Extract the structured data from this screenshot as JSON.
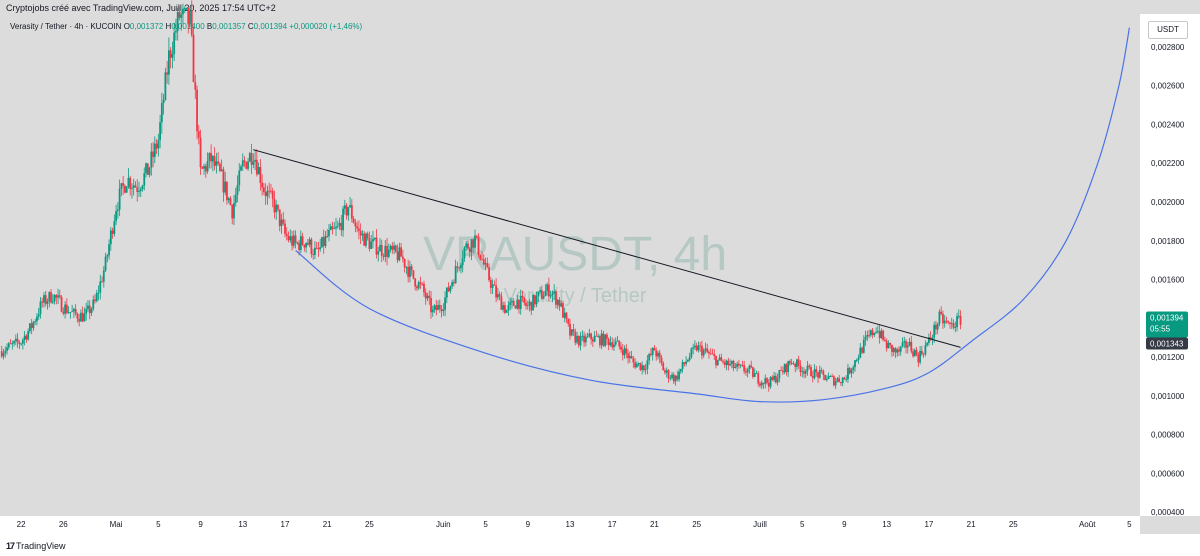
{
  "header": {
    "caption": "Cryptojobs créé avec TradingView.com, Juill 20, 2025 17:54 UTC+2"
  },
  "legend": {
    "symbol": "Verasity / Tether · 4h · KUCOIN",
    "o_label": "O",
    "o_value": "0,001372",
    "h_label": "H",
    "h_value": "0,001400",
    "l_label": "B",
    "l_value": "0,001357",
    "c_label": "C",
    "c_value": "0,001394",
    "change": "+0,000020 (+1,46%)"
  },
  "watermark": {
    "ticker": "VRAUSDT, 4h",
    "name": "Verasity / Tether"
  },
  "price_scale": {
    "currency": "USDT",
    "last_price": "0,001394",
    "countdown": "05:55",
    "other_price": "0,001343"
  },
  "footer": {
    "logo_mark": "17",
    "brand": "TradingView"
  },
  "colors": {
    "up": "#089981",
    "down": "#f23645",
    "trendline": "#131722",
    "curve": "#4a73e8",
    "background": "#dcdcdc"
  },
  "chart_data": {
    "type": "candlestick",
    "ylim": [
      0.00038,
      0.00297
    ],
    "yticks": [
      {
        "value": 0.0028,
        "label": "0,002800"
      },
      {
        "value": 0.0026,
        "label": "0,002600"
      },
      {
        "value": 0.0024,
        "label": "0,002400"
      },
      {
        "value": 0.0022,
        "label": "0,002200"
      },
      {
        "value": 0.002,
        "label": "0,002000"
      },
      {
        "value": 0.0018,
        "label": "0,001800"
      },
      {
        "value": 0.0016,
        "label": "0,001600"
      },
      {
        "value": 0.0012,
        "label": "0,001200"
      },
      {
        "value": 0.001,
        "label": "0,001000"
      },
      {
        "value": 0.0008,
        "label": "0,000800"
      },
      {
        "value": 0.0006,
        "label": "0,000600"
      },
      {
        "value": 0.0004,
        "label": "0,000400"
      }
    ],
    "xrange": [
      "2025-04-20",
      "2025-08-06"
    ],
    "xticks": [
      {
        "date": "2025-04-22",
        "label": "22"
      },
      {
        "date": "2025-04-26",
        "label": "26"
      },
      {
        "date": "2025-05-01",
        "label": "Mai"
      },
      {
        "date": "2025-05-05",
        "label": "5"
      },
      {
        "date": "2025-05-09",
        "label": "9"
      },
      {
        "date": "2025-05-13",
        "label": "13"
      },
      {
        "date": "2025-05-17",
        "label": "17"
      },
      {
        "date": "2025-05-21",
        "label": "21"
      },
      {
        "date": "2025-05-25",
        "label": "25"
      },
      {
        "date": "2025-06-01",
        "label": "Juin"
      },
      {
        "date": "2025-06-05",
        "label": "5"
      },
      {
        "date": "2025-06-09",
        "label": "9"
      },
      {
        "date": "2025-06-13",
        "label": "13"
      },
      {
        "date": "2025-06-17",
        "label": "17"
      },
      {
        "date": "2025-06-21",
        "label": "21"
      },
      {
        "date": "2025-06-25",
        "label": "25"
      },
      {
        "date": "2025-07-01",
        "label": "Juill"
      },
      {
        "date": "2025-07-05",
        "label": "5"
      },
      {
        "date": "2025-07-09",
        "label": "9"
      },
      {
        "date": "2025-07-13",
        "label": "13"
      },
      {
        "date": "2025-07-17",
        "label": "17"
      },
      {
        "date": "2025-07-21",
        "label": "21"
      },
      {
        "date": "2025-07-25",
        "label": "25"
      },
      {
        "date": "2025-08-01",
        "label": "Août"
      },
      {
        "date": "2025-08-05",
        "label": "5"
      }
    ],
    "price_path": [
      [
        "2025-04-20",
        0.00123
      ],
      [
        "2025-04-22",
        0.00128
      ],
      [
        "2025-04-23",
        0.00136
      ],
      [
        "2025-04-24",
        0.00148
      ],
      [
        "2025-04-25",
        0.00152
      ],
      [
        "2025-04-26",
        0.00146
      ],
      [
        "2025-04-27",
        0.00142
      ],
      [
        "2025-04-28",
        0.00141
      ],
      [
        "2025-04-29",
        0.00148
      ],
      [
        "2025-04-30",
        0.00168
      ],
      [
        "2025-05-01",
        0.00198
      ],
      [
        "2025-05-02",
        0.00212
      ],
      [
        "2025-05-03",
        0.00208
      ],
      [
        "2025-05-04",
        0.00216
      ],
      [
        "2025-05-05",
        0.00232
      ],
      [
        "2025-05-06",
        0.00275
      ],
      [
        "2025-05-07",
        0.00296
      ],
      [
        "2025-05-08",
        0.00293
      ],
      [
        "2025-05-09",
        0.00215
      ],
      [
        "2025-05-10",
        0.00222
      ],
      [
        "2025-05-11",
        0.00212
      ],
      [
        "2025-05-12",
        0.00196
      ],
      [
        "2025-05-13",
        0.00219
      ],
      [
        "2025-05-14",
        0.00226
      ],
      [
        "2025-05-15",
        0.00207
      ],
      [
        "2025-05-16",
        0.00198
      ],
      [
        "2025-05-17",
        0.00183
      ],
      [
        "2025-05-18",
        0.00178
      ],
      [
        "2025-05-19",
        0.0018
      ],
      [
        "2025-05-20",
        0.00173
      ],
      [
        "2025-05-21",
        0.00182
      ],
      [
        "2025-05-22",
        0.00186
      ],
      [
        "2025-05-23",
        0.00198
      ],
      [
        "2025-05-24",
        0.00184
      ],
      [
        "2025-05-25",
        0.00179
      ],
      [
        "2025-05-26",
        0.00176
      ],
      [
        "2025-05-27",
        0.00174
      ],
      [
        "2025-05-28",
        0.00172
      ],
      [
        "2025-05-29",
        0.00162
      ],
      [
        "2025-05-30",
        0.00155
      ],
      [
        "2025-05-31",
        0.00143
      ],
      [
        "2025-06-01",
        0.00148
      ],
      [
        "2025-06-02",
        0.00162
      ],
      [
        "2025-06-03",
        0.00176
      ],
      [
        "2025-06-04",
        0.00181
      ],
      [
        "2025-06-05",
        0.00165
      ],
      [
        "2025-06-06",
        0.00152
      ],
      [
        "2025-06-07",
        0.00144
      ],
      [
        "2025-06-08",
        0.00149
      ],
      [
        "2025-06-09",
        0.00146
      ],
      [
        "2025-06-10",
        0.00151
      ],
      [
        "2025-06-11",
        0.00155
      ],
      [
        "2025-06-12",
        0.00148
      ],
      [
        "2025-06-13",
        0.00132
      ],
      [
        "2025-06-14",
        0.00128
      ],
      [
        "2025-06-15",
        0.0013
      ],
      [
        "2025-06-16",
        0.00129
      ],
      [
        "2025-06-17",
        0.00128
      ],
      [
        "2025-06-18",
        0.00124
      ],
      [
        "2025-06-19",
        0.00117
      ],
      [
        "2025-06-20",
        0.00115
      ],
      [
        "2025-06-21",
        0.00124
      ],
      [
        "2025-06-22",
        0.00112
      ],
      [
        "2025-06-23",
        0.00109
      ],
      [
        "2025-06-24",
        0.00118
      ],
      [
        "2025-06-25",
        0.00125
      ],
      [
        "2025-06-26",
        0.00122
      ],
      [
        "2025-06-27",
        0.00118
      ],
      [
        "2025-06-28",
        0.00116
      ],
      [
        "2025-06-29",
        0.00114
      ],
      [
        "2025-06-30",
        0.00113
      ],
      [
        "2025-07-01",
        0.00108
      ],
      [
        "2025-07-02",
        0.00107
      ],
      [
        "2025-07-03",
        0.00112
      ],
      [
        "2025-07-04",
        0.00118
      ],
      [
        "2025-07-05",
        0.00114
      ],
      [
        "2025-07-06",
        0.00112
      ],
      [
        "2025-07-07",
        0.0011
      ],
      [
        "2025-07-08",
        0.00108
      ],
      [
        "2025-07-09",
        0.00109
      ],
      [
        "2025-07-10",
        0.00118
      ],
      [
        "2025-07-11",
        0.00128
      ],
      [
        "2025-07-12",
        0.00135
      ],
      [
        "2025-07-13",
        0.00126
      ],
      [
        "2025-07-14",
        0.00122
      ],
      [
        "2025-07-15",
        0.00127
      ],
      [
        "2025-07-16",
        0.0012
      ],
      [
        "2025-07-17",
        0.00128
      ],
      [
        "2025-07-18",
        0.0014
      ],
      [
        "2025-07-19",
        0.00136
      ],
      [
        "2025-07-20",
        0.001394
      ]
    ],
    "annotations": {
      "trendline": [
        [
          "2025-05-14",
          0.00227
        ],
        [
          "2025-07-20",
          0.00125
        ]
      ],
      "curve": [
        [
          "2025-05-18",
          0.00175
        ],
        [
          "2025-05-25",
          0.00145
        ],
        [
          "2025-06-05",
          0.00122
        ],
        [
          "2025-06-15",
          0.00108
        ],
        [
          "2025-06-25",
          0.00101
        ],
        [
          "2025-07-01",
          0.00097
        ],
        [
          "2025-07-07",
          0.00098
        ],
        [
          "2025-07-13",
          0.00104
        ],
        [
          "2025-07-17",
          0.00112
        ],
        [
          "2025-07-21",
          0.00128
        ],
        [
          "2025-07-26",
          0.0015
        ],
        [
          "2025-07-30",
          0.0018
        ],
        [
          "2025-08-02",
          0.0022
        ],
        [
          "2025-08-04",
          0.0026
        ],
        [
          "2025-08-05",
          0.0029
        ]
      ]
    }
  }
}
